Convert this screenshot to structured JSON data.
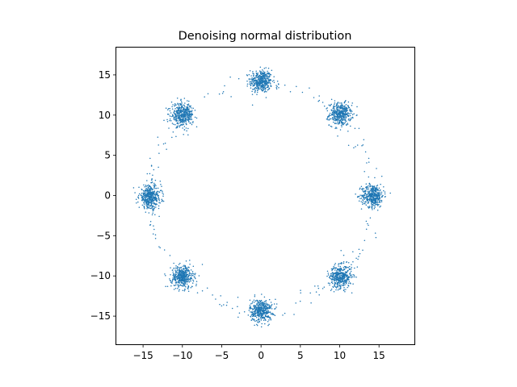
{
  "chart_data": {
    "type": "scatter",
    "title": "Denoising normal distribution",
    "xlabel": "",
    "ylabel": "",
    "xlim": [
      -18.4,
      19.5
    ],
    "ylim": [
      -18.5,
      18.4
    ],
    "xticks": [
      -15,
      -10,
      -5,
      0,
      5,
      10,
      15
    ],
    "xtick_labels": [
      "−15",
      "−10",
      "−5",
      "0",
      "5",
      "10",
      "15"
    ],
    "yticks": [
      -15,
      -10,
      -5,
      0,
      5,
      10,
      15
    ],
    "ytick_labels": [
      "−15",
      "−10",
      "−5",
      "0",
      "5",
      "10",
      "15"
    ],
    "grid": false,
    "legend": "none",
    "series": [
      {
        "color": "#1f77b4",
        "clusters": [
          {
            "center": [
              0.0,
              14.2
            ],
            "spread": 0.7,
            "count": 420
          },
          {
            "center": [
              10.1,
              10.1
            ],
            "spread": 0.7,
            "count": 420
          },
          {
            "center": [
              14.2,
              0.0
            ],
            "spread": 0.7,
            "count": 420
          },
          {
            "center": [
              10.1,
              -10.1
            ],
            "spread": 0.7,
            "count": 420
          },
          {
            "center": [
              0.0,
              -14.3
            ],
            "spread": 0.7,
            "count": 420
          },
          {
            "center": [
              -10.0,
              -10.1
            ],
            "spread": 0.7,
            "count": 420
          },
          {
            "center": [
              -14.1,
              -0.2
            ],
            "spread": 0.7,
            "count": 420
          },
          {
            "center": [
              -10.0,
              10.0
            ],
            "spread": 0.7,
            "count": 420
          }
        ],
        "ring": {
          "radius": 14.2,
          "count": 180
        }
      }
    ]
  }
}
